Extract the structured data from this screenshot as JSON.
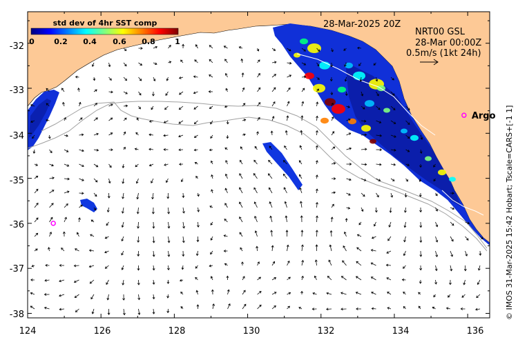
{
  "map": {
    "product_time": "28-Mar-2025 20Z",
    "velocity_source": "NRT00 GSL",
    "velocity_time": "28-Mar 00:00Z",
    "scale_label": "0.5m/s (1kt 24h)",
    "credit": "© IMOS 31-Mar-2025 15:42 Hobart; Tscale=CARS+[-1 1]",
    "float_label": "Argo",
    "colorbar": {
      "title": "std dev of 4hr SST comp",
      "ticks": [
        "0",
        "0.2",
        "0.4",
        "0.6",
        "0.8",
        "1"
      ],
      "range": [
        0,
        1
      ],
      "colors": [
        "#00007f",
        "#0000ff",
        "#0080ff",
        "#00ffff",
        "#80ff80",
        "#ffff00",
        "#ff8000",
        "#ff0000",
        "#7f0000"
      ]
    },
    "x_axis": {
      "labels": [
        "124",
        "126",
        "128",
        "130",
        "132",
        "134",
        "136"
      ],
      "range": [
        124,
        136.6
      ]
    },
    "y_axis": {
      "labels": [
        "-32",
        "-33",
        "-34",
        "-35",
        "-36",
        "-37",
        "-38"
      ],
      "range": [
        -38.1,
        -31.3
      ]
    },
    "colors": {
      "land": "#fdc996",
      "argo_marker": "#ff00ff",
      "contour": "#a0a0a0"
    },
    "argo_floats": [
      {
        "lon": 135.9,
        "lat": -33.6,
        "labeled": true
      },
      {
        "lon": 124.7,
        "lat": -36.0,
        "labeled": false
      }
    ]
  }
}
